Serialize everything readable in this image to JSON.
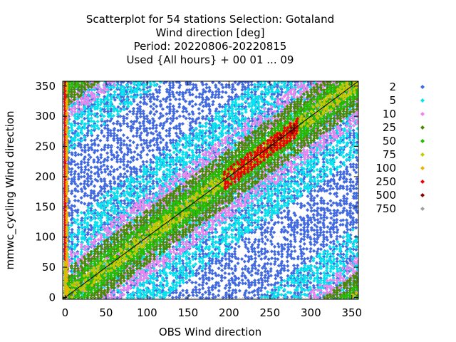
{
  "chart_data": {
    "type": "scatter",
    "title_lines": [
      "Scatterplot for   54 stations Selection: Gotaland",
      "Wind direction [deg]",
      "Period: 20220806-20220815",
      "Used {All hours} + 00 01 ... 09"
    ],
    "xlabel": "OBS Wind direction",
    "ylabel": "mmwc_cycling Wind direction",
    "xlim": [
      -3,
      358
    ],
    "ylim": [
      -3,
      358
    ],
    "xticks": [
      0,
      50,
      100,
      150,
      200,
      250,
      300,
      350
    ],
    "yticks": [
      0,
      50,
      100,
      150,
      200,
      250,
      300,
      350
    ],
    "grid": true,
    "diagonal": true,
    "legend_position": "right",
    "legend": [
      {
        "label": "2",
        "color": "#4169e1"
      },
      {
        "label": "5",
        "color": "#00e5ee"
      },
      {
        "label": "10",
        "color": "#ee82ee"
      },
      {
        "label": "25",
        "color": "#4a8a00"
      },
      {
        "label": "50",
        "color": "#20c000"
      },
      {
        "label": "75",
        "color": "#c8c800"
      },
      {
        "label": "100",
        "color": "#f0b400"
      },
      {
        "label": "250",
        "color": "#ee0000"
      },
      {
        "label": "500",
        "color": "#8b0000"
      },
      {
        "label": "750",
        "color": "#a0a0a0"
      }
    ],
    "density_bands": [
      {
        "level": "2",
        "max_offset": 180,
        "coverage": 0.55
      },
      {
        "level": "5",
        "max_offset": 120,
        "coverage": 0.55
      },
      {
        "level": "10",
        "max_offset": 70,
        "coverage": 0.6
      },
      {
        "level": "25",
        "max_offset": 45,
        "coverage": 0.85
      },
      {
        "level": "50",
        "max_offset": 25,
        "coverage": 0.8
      },
      {
        "level": "75",
        "max_offset": 12,
        "coverage": 0.6
      },
      {
        "level": "250",
        "max_offset": 15,
        "coverage": 0.85,
        "x_range": [
          195,
          285
        ]
      },
      {
        "level": "500",
        "max_offset": 4,
        "coverage": 0.4,
        "x_range": [
          240,
          280
        ]
      }
    ]
  }
}
